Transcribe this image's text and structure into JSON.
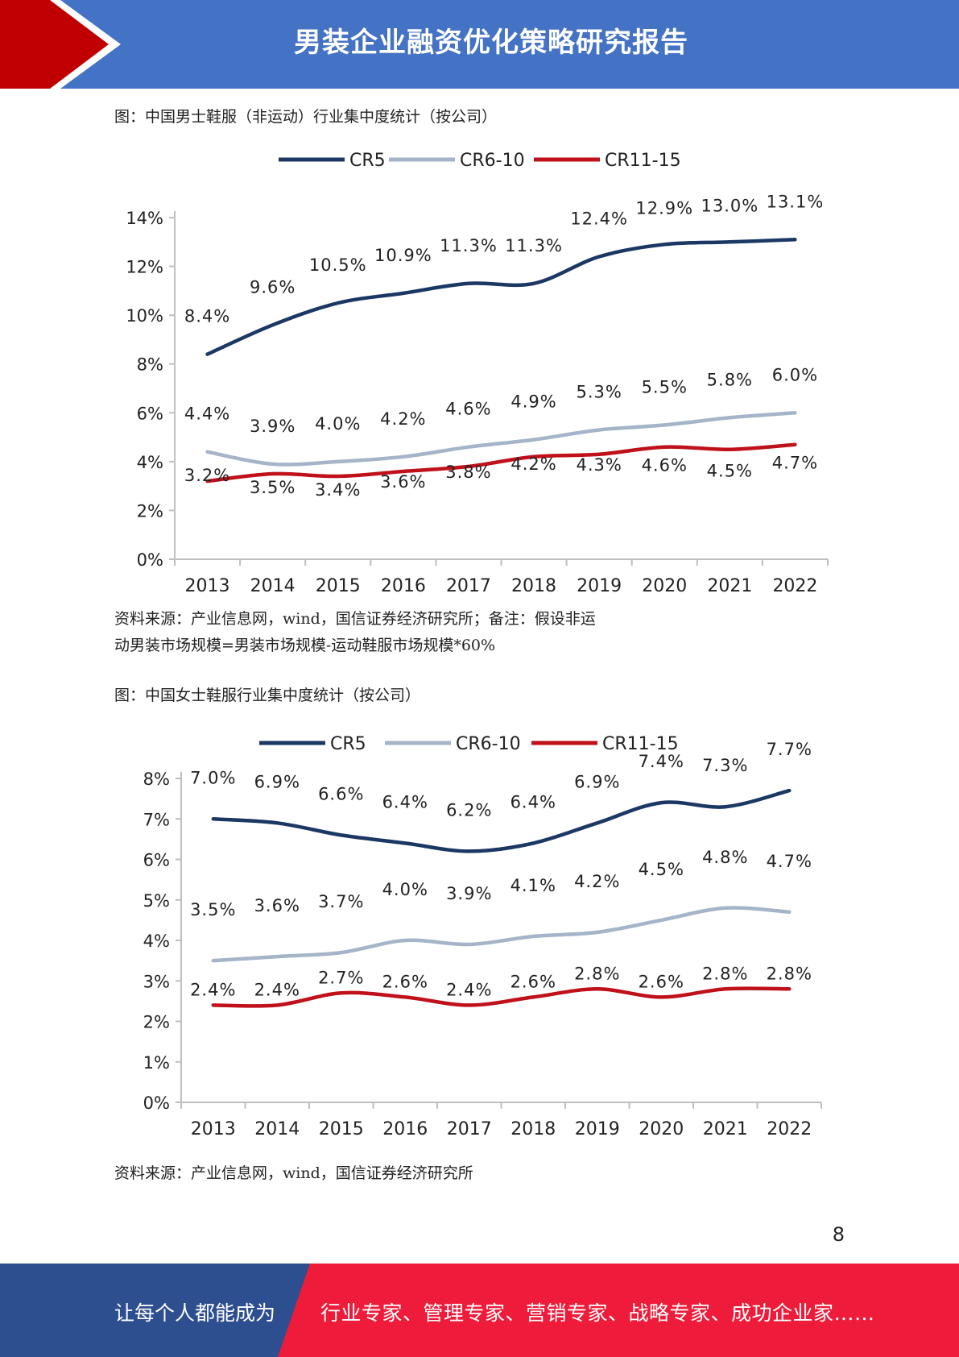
{
  "header": {
    "title": "男装企业融资优化策略研究报告"
  },
  "figure1": {
    "caption": "图：中国男士鞋服（非运动）行业集中度统计（按公司）",
    "source_line1": "资料来源：产业信息网，wind，国信证券经济研究所；备注：假设非运",
    "source_line2": "动男装市场规模=男装市场规模-运动鞋服市场规模*60%"
  },
  "figure2": {
    "caption": "图：中国女士鞋服行业集中度统计（按公司）",
    "source": "资料来源：产业信息网，wind，国信证券经济研究所"
  },
  "page_number": "8",
  "footer": {
    "left_text": "让每个人都能成为",
    "right_text": "行业专家、管理专家、营销专家、战略专家、成功企业家……"
  },
  "colors": {
    "header_blue": "#4472c4",
    "chevron_red": "#c00000",
    "footer_blue": "#2e4f8f",
    "footer_red": "#ee1c3a",
    "cr5": "#1b3764",
    "cr6_10": "#a5b4c8",
    "cr11_15": "#c0111a"
  },
  "chart_data": [
    {
      "type": "line",
      "categories": [
        "2013",
        "2014",
        "2015",
        "2016",
        "2017",
        "2018",
        "2019",
        "2020",
        "2021",
        "2022"
      ],
      "ylim": [
        0,
        14
      ],
      "yticks": [
        0,
        2,
        4,
        6,
        8,
        10,
        12,
        14
      ],
      "ytick_labels": [
        "0%",
        "2%",
        "4%",
        "6%",
        "8%",
        "10%",
        "12%",
        "14%"
      ],
      "legend_position": "top-center",
      "grid": false,
      "series": [
        {
          "name": "CR5",
          "color": "#1b3764",
          "values": [
            8.4,
            9.6,
            10.5,
            10.9,
            11.3,
            11.3,
            12.4,
            12.9,
            13.0,
            13.1
          ],
          "labels": [
            "8.4%",
            "9.6%",
            "10.5%",
            "10.9%",
            "11.3%",
            "11.3%",
            "12.4%",
            "12.9%",
            "13.0%",
            "13.1%"
          ]
        },
        {
          "name": "CR6-10",
          "color": "#a5b4c8",
          "values": [
            4.4,
            3.9,
            4.0,
            4.2,
            4.6,
            4.9,
            5.3,
            5.5,
            5.8,
            6.0
          ],
          "labels": [
            "4.4%",
            "3.9%",
            "4.0%",
            "4.2%",
            "4.6%",
            "4.9%",
            "5.3%",
            "5.5%",
            "5.8%",
            "6.0%"
          ]
        },
        {
          "name": "CR11-15",
          "color": "#c0111a",
          "values": [
            3.2,
            3.5,
            3.4,
            3.6,
            3.8,
            4.2,
            4.3,
            4.6,
            4.5,
            4.7
          ],
          "labels": [
            "3.2%",
            "3.5%",
            "3.4%",
            "3.6%",
            "3.8%",
            "4.2%",
            "4.3%",
            "4.6%",
            "4.5%",
            "4.7%"
          ]
        }
      ]
    },
    {
      "type": "line",
      "categories": [
        "2013",
        "2014",
        "2015",
        "2016",
        "2017",
        "2018",
        "2019",
        "2020",
        "2021",
        "2022"
      ],
      "ylim": [
        0,
        8
      ],
      "yticks": [
        0,
        1,
        2,
        3,
        4,
        5,
        6,
        7,
        8
      ],
      "ytick_labels": [
        "0%",
        "1%",
        "2%",
        "3%",
        "4%",
        "5%",
        "6%",
        "7%",
        "8%"
      ],
      "legend_position": "top-center",
      "grid": false,
      "series": [
        {
          "name": "CR5",
          "color": "#1b3764",
          "values": [
            7.0,
            6.9,
            6.6,
            6.4,
            6.2,
            6.4,
            6.9,
            7.4,
            7.3,
            7.7
          ],
          "labels": [
            "7.0%",
            "6.9%",
            "6.6%",
            "6.4%",
            "6.2%",
            "6.4%",
            "6.9%",
            "7.4%",
            "7.3%",
            "7.7%"
          ]
        },
        {
          "name": "CR6-10",
          "color": "#a5b4c8",
          "values": [
            3.5,
            3.6,
            3.7,
            4.0,
            3.9,
            4.1,
            4.2,
            4.5,
            4.8,
            4.7
          ],
          "labels": [
            "3.5%",
            "3.6%",
            "3.7%",
            "4.0%",
            "3.9%",
            "4.1%",
            "4.2%",
            "4.5%",
            "4.8%",
            "4.7%"
          ]
        },
        {
          "name": "CR11-15",
          "color": "#c0111a",
          "values": [
            2.4,
            2.4,
            2.7,
            2.6,
            2.4,
            2.6,
            2.8,
            2.6,
            2.8,
            2.8
          ],
          "labels": [
            "2.4%",
            "2.4%",
            "2.7%",
            "2.6%",
            "2.4%",
            "2.6%",
            "2.8%",
            "2.6%",
            "2.8%",
            "2.8%"
          ]
        }
      ]
    }
  ]
}
